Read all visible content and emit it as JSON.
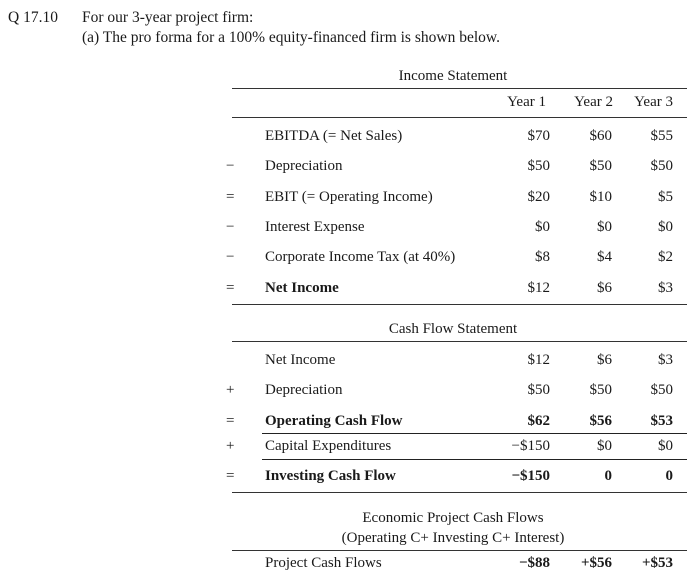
{
  "question": {
    "number": "Q 17.10",
    "intro": "For our 3-year project firm:",
    "part_a": "(a) The pro forma for a 100% equity-financed firm is shown below."
  },
  "income_statement": {
    "title": "Income Statement",
    "years": [
      "Year 1",
      "Year 2",
      "Year 3"
    ],
    "rows": [
      {
        "op": "",
        "label": "EBITDA (= Net Sales)",
        "values": [
          "$70",
          "$60",
          "$55"
        ],
        "bold": false
      },
      {
        "op": "−",
        "label": "Depreciation",
        "values": [
          "$50",
          "$50",
          "$50"
        ],
        "bold": false
      },
      {
        "op": "=",
        "label": "EBIT (= Operating Income)",
        "values": [
          "$20",
          "$10",
          "$5"
        ],
        "bold": false
      },
      {
        "op": "−",
        "label": "Interest Expense",
        "values": [
          "$0",
          "$0",
          "$0"
        ],
        "bold": false
      },
      {
        "op": "−",
        "label": "Corporate Income Tax (at 40%)",
        "values": [
          "$8",
          "$4",
          "$2"
        ],
        "bold": false
      },
      {
        "op": "=",
        "label": "Net Income",
        "values": [
          "$12",
          "$6",
          "$3"
        ],
        "bold": true
      }
    ]
  },
  "cash_flow_statement": {
    "title": "Cash Flow Statement",
    "rows": [
      {
        "op": "",
        "label": "Net Income",
        "values": [
          "$12",
          "$6",
          "$3"
        ],
        "bold": false
      },
      {
        "op": "+",
        "label": "Depreciation",
        "values": [
          "$50",
          "$50",
          "$50"
        ],
        "bold": false
      },
      {
        "op": "=",
        "label": "Operating Cash Flow",
        "values": [
          "$62",
          "$56",
          "$53"
        ],
        "bold": true
      },
      {
        "op": "+",
        "label": "Capital Expenditures",
        "values": [
          "−$150",
          "$0",
          "$0"
        ],
        "bold": false
      },
      {
        "op": "=",
        "label": "Investing Cash Flow",
        "values": [
          "−$150",
          "0",
          "0"
        ],
        "bold": true
      }
    ]
  },
  "economic_cash_flows": {
    "title": "Economic Project Cash Flows",
    "subtitle": "(Operating C+ Investing C+ Interest)",
    "row": {
      "label": "Project Cash Flows",
      "values": [
        "−$88",
        "+$56",
        "+$53"
      ]
    }
  }
}
